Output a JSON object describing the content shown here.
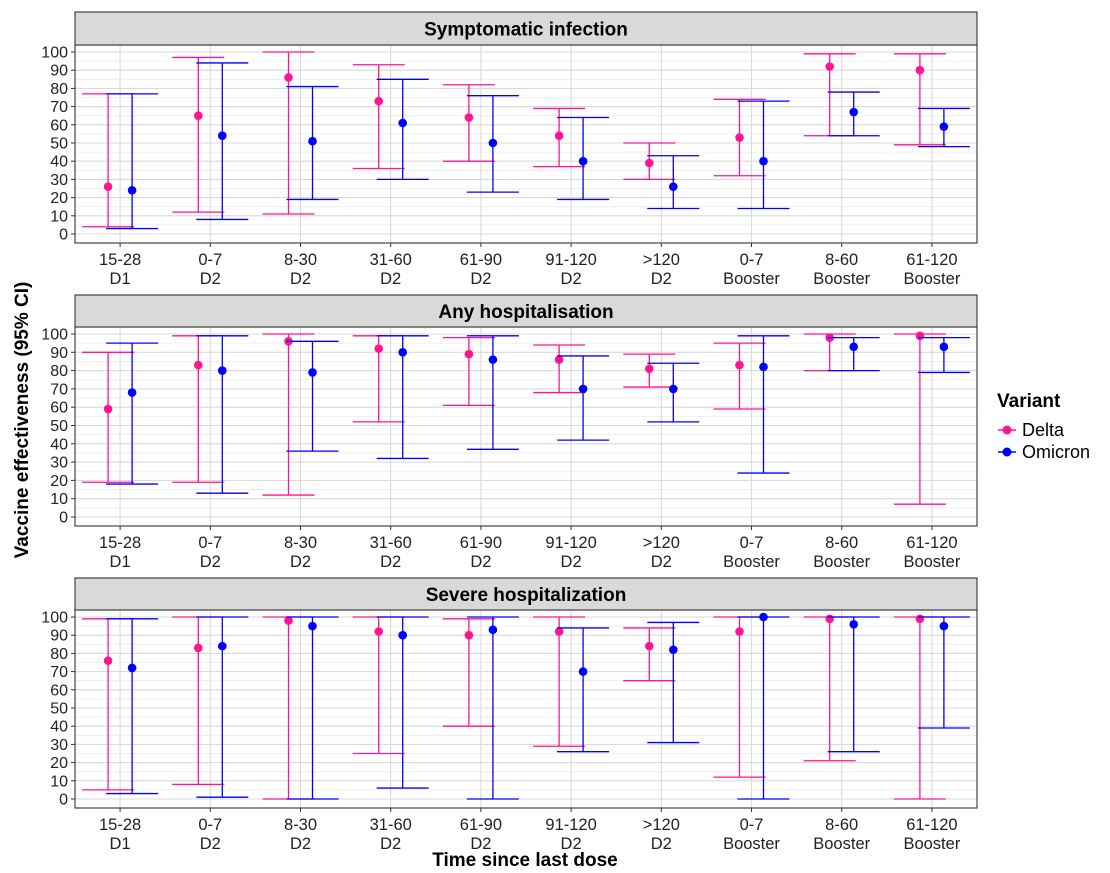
{
  "chart_data": {
    "type": "errorbar-dot",
    "xlabel": "Time since last dose",
    "ylabel": "Vaccine effectiveness (95% CI)",
    "ylim": [
      0,
      100
    ],
    "yticks": [
      0,
      10,
      20,
      30,
      40,
      50,
      60,
      70,
      80,
      90,
      100
    ],
    "grid": true,
    "legend": {
      "title": "Variant",
      "placement": "right",
      "entries": [
        {
          "name": "Delta",
          "color": "#ff1493"
        },
        {
          "name": "Omicron",
          "color": "#0000ff"
        }
      ]
    },
    "categories": [
      [
        "15-28",
        "D1"
      ],
      [
        "0-7",
        "D2"
      ],
      [
        "8-30",
        "D2"
      ],
      [
        "31-60",
        "D2"
      ],
      [
        "61-90",
        "D2"
      ],
      [
        "91-120",
        "D2"
      ],
      [
        ">120",
        "D2"
      ],
      [
        "0-7",
        "Booster"
      ],
      [
        "8-60",
        "Booster"
      ],
      [
        "61-120",
        "Booster"
      ]
    ],
    "panels": [
      {
        "title": "Symptomatic infection",
        "series": [
          {
            "name": "Delta",
            "estimate": [
              26,
              65,
              86,
              73,
              64,
              54,
              39,
              53,
              92,
              90
            ],
            "lower": [
              4,
              12,
              11,
              36,
              40,
              37,
              30,
              32,
              54,
              49
            ],
            "upper": [
              77,
              97,
              100,
              93,
              82,
              69,
              50,
              74,
              99,
              99
            ]
          },
          {
            "name": "Omicron",
            "estimate": [
              24,
              54,
              51,
              61,
              50,
              40,
              26,
              40,
              67,
              59
            ],
            "lower": [
              3,
              8,
              19,
              30,
              23,
              19,
              14,
              14,
              54,
              48
            ],
            "upper": [
              77,
              94,
              81,
              85,
              76,
              64,
              43,
              73,
              78,
              69
            ]
          }
        ]
      },
      {
        "title": "Any hospitalisation",
        "series": [
          {
            "name": "Delta",
            "estimate": [
              59,
              83,
              96,
              92,
              89,
              86,
              81,
              83,
              98,
              99
            ],
            "lower": [
              19,
              19,
              12,
              52,
              61,
              68,
              71,
              59,
              80,
              7
            ],
            "upper": [
              90,
              99,
              100,
              99,
              98,
              94,
              89,
              95,
              100,
              100
            ]
          },
          {
            "name": "Omicron",
            "estimate": [
              68,
              80,
              79,
              90,
              86,
              70,
              70,
              82,
              93,
              93
            ],
            "lower": [
              18,
              13,
              36,
              32,
              37,
              42,
              52,
              24,
              80,
              79
            ],
            "upper": [
              95,
              99,
              96,
              99,
              99,
              88,
              84,
              99,
              98,
              98
            ]
          }
        ]
      },
      {
        "title": "Severe hospitalization",
        "series": [
          {
            "name": "Delta",
            "estimate": [
              76,
              83,
              98,
              92,
              90,
              92,
              84,
              92,
              99,
              99
            ],
            "lower": [
              5,
              8,
              0,
              25,
              40,
              29,
              65,
              12,
              21,
              0
            ],
            "upper": [
              99,
              100,
              100,
              100,
              99,
              100,
              94,
              100,
              100,
              100
            ]
          },
          {
            "name": "Omicron",
            "estimate": [
              72,
              84,
              95,
              90,
              93,
              70,
              82,
              100,
              96,
              95
            ],
            "lower": [
              3,
              1,
              0,
              6,
              0,
              26,
              31,
              0,
              26,
              39
            ],
            "upper": [
              99,
              100,
              100,
              100,
              100,
              94,
              97,
              100,
              100,
              100
            ]
          }
        ]
      }
    ]
  }
}
